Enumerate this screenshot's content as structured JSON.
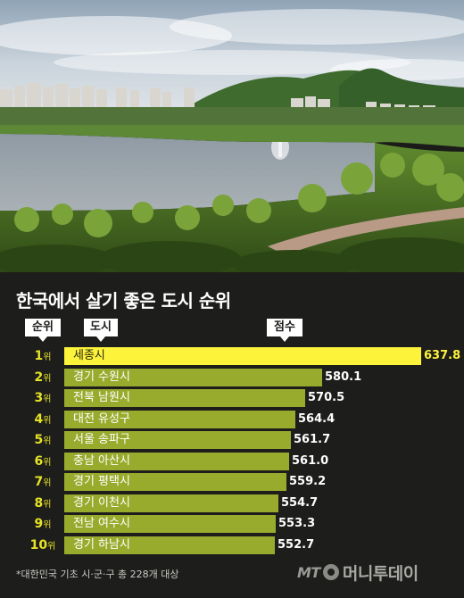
{
  "chart_data": {
    "type": "bar",
    "title": "한국에서 살기 좋은 도시 순위",
    "column_headers": {
      "rank": "순위",
      "city": "도시",
      "score": "점수"
    },
    "rank_suffix": "위",
    "categories": [
      "세종시",
      "경기 수원시",
      "전북 남원시",
      "대전 유성구",
      "서울 송파구",
      "충남 아산시",
      "경기 평택시",
      "경기 이천시",
      "전남 여수시",
      "경기 하남시"
    ],
    "ranks": [
      "1",
      "2",
      "3",
      "4",
      "5",
      "6",
      "7",
      "8",
      "9",
      "10"
    ],
    "values": [
      637.8,
      580.1,
      570.5,
      564.4,
      561.7,
      561.0,
      559.2,
      554.7,
      553.3,
      552.7
    ],
    "value_labels": [
      "637.8",
      "580.1",
      "570.5",
      "564.4",
      "561.7",
      "561.0",
      "559.2",
      "554.7",
      "553.3",
      "552.7"
    ],
    "colors": {
      "top": "#fdf33a",
      "rest": "#98ab2c",
      "rank_text": "#e6e327"
    }
  },
  "footnote": "*대한민국 기초 시·군·구 총 228개 대상",
  "logo": {
    "mark": "MT",
    "name": "머니투데이"
  }
}
